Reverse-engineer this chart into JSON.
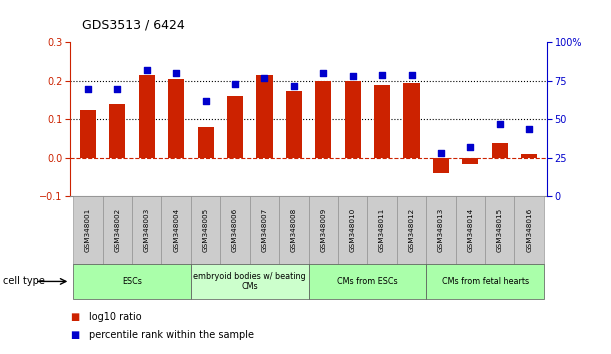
{
  "title": "GDS3513 / 6424",
  "samples": [
    "GSM348001",
    "GSM348002",
    "GSM348003",
    "GSM348004",
    "GSM348005",
    "GSM348006",
    "GSM348007",
    "GSM348008",
    "GSM348009",
    "GSM348010",
    "GSM348011",
    "GSM348012",
    "GSM348013",
    "GSM348014",
    "GSM348015",
    "GSM348016"
  ],
  "log10_ratio": [
    0.125,
    0.14,
    0.215,
    0.205,
    0.08,
    0.16,
    0.215,
    0.175,
    0.2,
    0.2,
    0.19,
    0.195,
    -0.04,
    -0.015,
    0.04,
    0.01
  ],
  "percentile_rank": [
    70,
    70,
    82,
    80,
    62,
    73,
    77,
    72,
    80,
    78,
    79,
    79,
    28,
    32,
    47,
    44
  ],
  "bar_color": "#CC2200",
  "dot_color": "#0000CC",
  "ylim_left": [
    -0.1,
    0.3
  ],
  "ylim_right": [
    0,
    100
  ],
  "yticks_left": [
    -0.1,
    0.0,
    0.1,
    0.2,
    0.3
  ],
  "yticks_right": [
    0,
    25,
    50,
    75,
    100
  ],
  "hlines": [
    0.1,
    0.2
  ],
  "zero_line": 0.0,
  "groups": [
    {
      "label": "ESCs",
      "start": 0,
      "end": 4,
      "color": "#AAFFAA"
    },
    {
      "label": "embryoid bodies w/ beating\nCMs",
      "start": 4,
      "end": 8,
      "color": "#CCFFCC"
    },
    {
      "label": "CMs from ESCs",
      "start": 8,
      "end": 12,
      "color": "#AAFFAA"
    },
    {
      "label": "CMs from fetal hearts",
      "start": 12,
      "end": 16,
      "color": "#AAFFAA"
    }
  ],
  "cell_type_label": "cell type",
  "legend_items": [
    {
      "label": "log10 ratio",
      "color": "#CC2200"
    },
    {
      "label": "percentile rank within the sample",
      "color": "#0000CC"
    }
  ],
  "background_color": "#FFFFFF",
  "plot_bg_color": "#FFFFFF"
}
